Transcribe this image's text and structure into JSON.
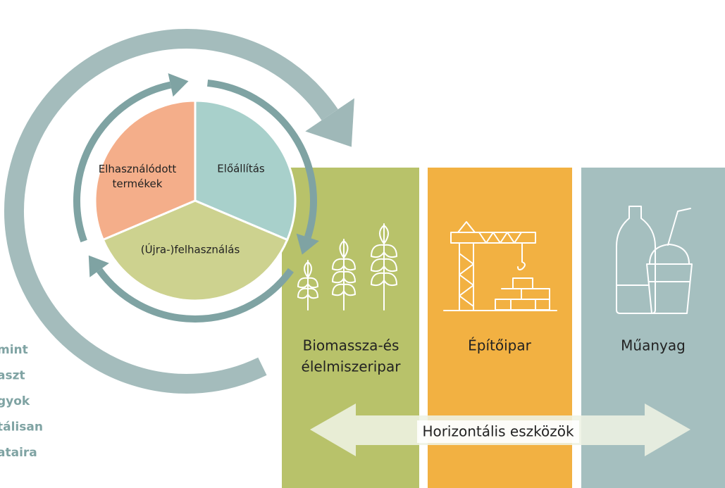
{
  "pie": {
    "segments": [
      "Előállítás",
      [
        "Elhasználódott",
        "termékek"
      ],
      "(Újra-)felhasználás"
    ]
  },
  "sectors": [
    [
      "Biomassza-és",
      "élelmiszeripar"
    ],
    [
      "Építőipar"
    ],
    [
      "Műanyag"
    ]
  ],
  "tools_label": "Horizontális eszközök",
  "side_text": [
    "mint",
    "aszt",
    "gyok",
    "tálisan",
    "ataira"
  ]
}
